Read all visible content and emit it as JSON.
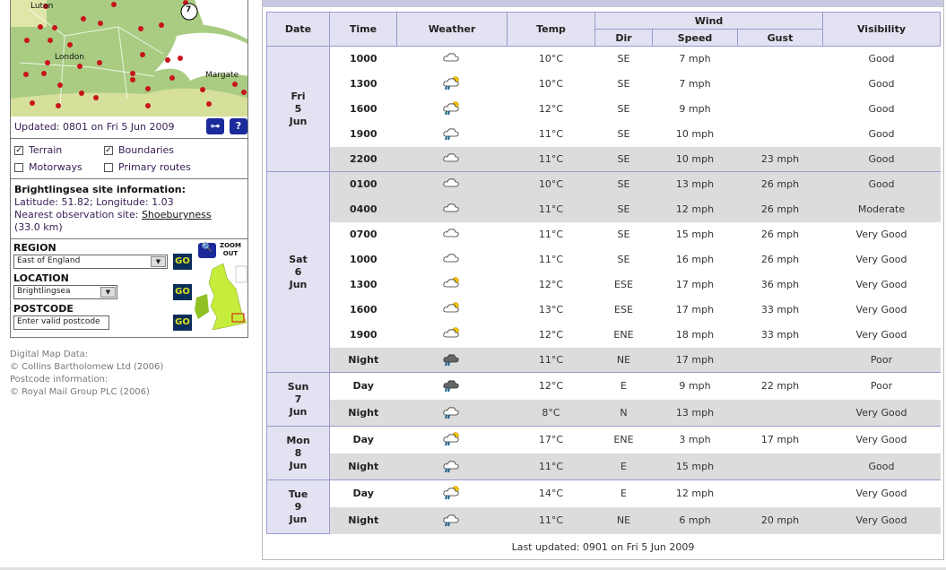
{
  "map": {
    "labels": [
      "Luton",
      "London",
      "Margate"
    ],
    "marker": "7"
  },
  "updated": "Updated: 0801 on Fri 5 Jun 2009",
  "key_icon": "key-icon",
  "help_label": "?",
  "layers": [
    {
      "label": "Terrain",
      "checked": true
    },
    {
      "label": "Boundaries",
      "checked": true
    },
    {
      "label": "Motorways",
      "checked": false
    },
    {
      "label": "Primary routes",
      "checked": false
    }
  ],
  "info": {
    "title": "Brightlingsea site information:",
    "latlon": "Latitude: 51.82; Longitude: 1.03",
    "nearest_prefix": "Nearest observation site: ",
    "nearest_link": "Shoeburyness",
    "distance": "(33.0 km)"
  },
  "region": {
    "label": "REGION",
    "value": "East of England"
  },
  "location": {
    "label": "LOCATION",
    "value": "Brightlingsea"
  },
  "postcode": {
    "label": "POSTCODE",
    "placeholder": "Enter valid postcode"
  },
  "go": "GO",
  "zoom_out": "ZOOM OUT",
  "credits": [
    "Digital Map Data:",
    "© Collins Bartholomew Ltd (2006)",
    "Postcode information:",
    "© Royal Mail Group PLC (2006)"
  ],
  "table": {
    "headers": {
      "date": "Date",
      "time": "Time",
      "weather": "Weather",
      "temp": "Temp",
      "wind": "Wind",
      "dir": "Dir",
      "speed": "Speed",
      "gust": "Gust",
      "visibility": "Visibility"
    },
    "days": [
      {
        "day": "Fri",
        "num": "5",
        "mon": "Jun",
        "rows": [
          {
            "time": "1000",
            "icon": "cloud",
            "temp": "10°C",
            "dir": "SE",
            "speed": "7 mph",
            "gust": "",
            "vis": "Good",
            "grey": false
          },
          {
            "time": "1300",
            "icon": "sun-cloud-rain",
            "temp": "10°C",
            "dir": "SE",
            "speed": "7 mph",
            "gust": "",
            "vis": "Good",
            "grey": false
          },
          {
            "time": "1600",
            "icon": "sun-cloud-rain",
            "temp": "12°C",
            "dir": "SE",
            "speed": "9 mph",
            "gust": "",
            "vis": "Good",
            "grey": false
          },
          {
            "time": "1900",
            "icon": "cloud-rain",
            "temp": "11°C",
            "dir": "SE",
            "speed": "10 mph",
            "gust": "",
            "vis": "Good",
            "grey": false
          },
          {
            "time": "2200",
            "icon": "cloud",
            "temp": "11°C",
            "dir": "SE",
            "speed": "10 mph",
            "gust": "23 mph",
            "vis": "Good",
            "grey": true
          }
        ]
      },
      {
        "day": "Sat",
        "num": "6",
        "mon": "Jun",
        "rows": [
          {
            "time": "0100",
            "icon": "cloud",
            "temp": "10°C",
            "dir": "SE",
            "speed": "13 mph",
            "gust": "26 mph",
            "vis": "Good",
            "grey": true
          },
          {
            "time": "0400",
            "icon": "cloud",
            "temp": "11°C",
            "dir": "SE",
            "speed": "12 mph",
            "gust": "26 mph",
            "vis": "Moderate",
            "grey": true
          },
          {
            "time": "0700",
            "icon": "cloud",
            "temp": "11°C",
            "dir": "SE",
            "speed": "15 mph",
            "gust": "26 mph",
            "vis": "Very Good",
            "grey": false
          },
          {
            "time": "1000",
            "icon": "cloud",
            "temp": "11°C",
            "dir": "SE",
            "speed": "16 mph",
            "gust": "26 mph",
            "vis": "Very Good",
            "grey": false
          },
          {
            "time": "1300",
            "icon": "sun-cloud",
            "temp": "12°C",
            "dir": "ESE",
            "speed": "17 mph",
            "gust": "36 mph",
            "vis": "Very Good",
            "grey": false
          },
          {
            "time": "1600",
            "icon": "sun-cloud",
            "temp": "13°C",
            "dir": "ESE",
            "speed": "17 mph",
            "gust": "33 mph",
            "vis": "Very Good",
            "grey": false
          },
          {
            "time": "1900",
            "icon": "sun-cloud",
            "temp": "12°C",
            "dir": "ENE",
            "speed": "18 mph",
            "gust": "33 mph",
            "vis": "Very Good",
            "grey": false
          },
          {
            "time": "Night",
            "icon": "heavy-rain",
            "temp": "11°C",
            "dir": "NE",
            "speed": "17 mph",
            "gust": "",
            "vis": "Poor",
            "grey": true
          }
        ]
      },
      {
        "day": "Sun",
        "num": "7",
        "mon": "Jun",
        "rows": [
          {
            "time": "Day",
            "icon": "heavy-rain",
            "temp": "12°C",
            "dir": "E",
            "speed": "9 mph",
            "gust": "22 mph",
            "vis": "Poor",
            "grey": false
          },
          {
            "time": "Night",
            "icon": "cloud-rain",
            "temp": "8°C",
            "dir": "N",
            "speed": "13 mph",
            "gust": "",
            "vis": "Very Good",
            "grey": true
          }
        ]
      },
      {
        "day": "Mon",
        "num": "8",
        "mon": "Jun",
        "rows": [
          {
            "time": "Day",
            "icon": "sun-cloud-rain",
            "temp": "17°C",
            "dir": "ENE",
            "speed": "3 mph",
            "gust": "17 mph",
            "vis": "Very Good",
            "grey": false
          },
          {
            "time": "Night",
            "icon": "cloud-rain",
            "temp": "11°C",
            "dir": "E",
            "speed": "15 mph",
            "gust": "",
            "vis": "Good",
            "grey": true
          }
        ]
      },
      {
        "day": "Tue",
        "num": "9",
        "mon": "Jun",
        "rows": [
          {
            "time": "Day",
            "icon": "sun-cloud-rain",
            "temp": "14°C",
            "dir": "E",
            "speed": "12 mph",
            "gust": "",
            "vis": "Very Good",
            "grey": false
          },
          {
            "time": "Night",
            "icon": "cloud-rain",
            "temp": "11°C",
            "dir": "NE",
            "speed": "6 mph",
            "gust": "20 mph",
            "vis": "Very Good",
            "grey": true
          }
        ]
      }
    ]
  },
  "footer": "Last updated: 0901 on Fri 5 Jun 2009"
}
